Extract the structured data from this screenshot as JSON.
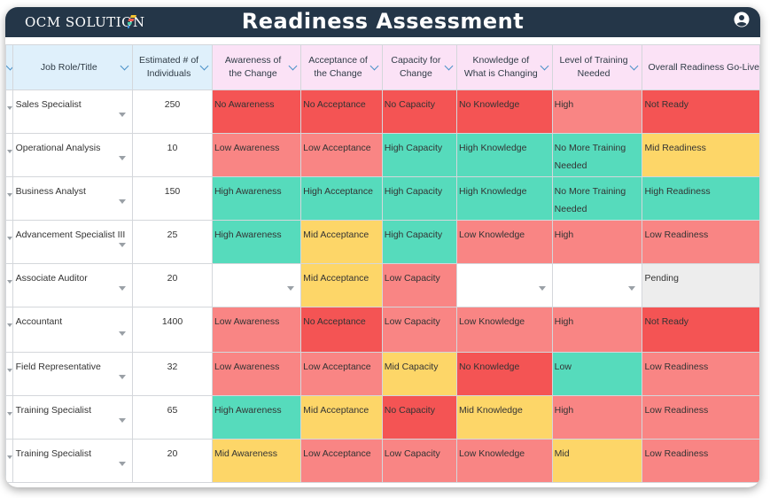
{
  "header": {
    "logo_text": "OCM SOLUTION",
    "title": "Readiness Assessment",
    "user_icon": "user-circle-icon"
  },
  "colors": {
    "topbar": "#243648",
    "red": "#f45454",
    "light_red": "#f98584",
    "green": "#56dbbc",
    "yellow": "#fdd668",
    "grey": "#ededed",
    "header_blue": "#dff0fb",
    "header_pink": "#fbe2f6"
  },
  "columns": [
    {
      "key": "role",
      "label": "Job Role/Title"
    },
    {
      "key": "count",
      "label": "Estimated # of Individuals"
    },
    {
      "key": "awareness",
      "label": "Awareness of the Change"
    },
    {
      "key": "acceptance",
      "label": "Acceptance of the Change"
    },
    {
      "key": "capacity",
      "label": "Capacity for Change"
    },
    {
      "key": "knowledge",
      "label": "Knowledge of What is Changing"
    },
    {
      "key": "training",
      "label": "Level of Training Needed"
    },
    {
      "key": "overall",
      "label": "Overall Readiness Go-Live"
    }
  ],
  "rows": [
    {
      "role": "Sales Specialist",
      "count": "250",
      "awareness": {
        "text": "No Awareness",
        "color": "red"
      },
      "acceptance": {
        "text": "No Acceptance",
        "color": "red"
      },
      "capacity": {
        "text": "No Capacity",
        "color": "red"
      },
      "knowledge": {
        "text": "No Knowledge",
        "color": "red"
      },
      "training": {
        "text": "High",
        "color": "lred"
      },
      "overall": {
        "text": "Not Ready",
        "color": "red"
      }
    },
    {
      "role": "Operational Analysis",
      "count": "10",
      "awareness": {
        "text": "Low Awareness",
        "color": "lred"
      },
      "acceptance": {
        "text": "Low Acceptance",
        "color": "lred"
      },
      "capacity": {
        "text": "High Capacity",
        "color": "green"
      },
      "knowledge": {
        "text": "High Knowledge",
        "color": "green"
      },
      "training": {
        "text": "No More Training Needed",
        "color": "green"
      },
      "overall": {
        "text": "Mid Readiness",
        "color": "yellow"
      }
    },
    {
      "role": "Business Analyst",
      "count": "150",
      "awareness": {
        "text": "High Awareness",
        "color": "green"
      },
      "acceptance": {
        "text": "High Acceptance",
        "color": "green"
      },
      "capacity": {
        "text": "High Capacity",
        "color": "green"
      },
      "knowledge": {
        "text": "High Knowledge",
        "color": "green"
      },
      "training": {
        "text": "No More Training Needed",
        "color": "green"
      },
      "overall": {
        "text": "High Readiness",
        "color": "green"
      }
    },
    {
      "role": "Advancement Specialist III",
      "count": "25",
      "awareness": {
        "text": "High Awareness",
        "color": "green"
      },
      "acceptance": {
        "text": "Mid Acceptance",
        "color": "yellow"
      },
      "capacity": {
        "text": "High Capacity",
        "color": "green"
      },
      "knowledge": {
        "text": "Low Knowledge",
        "color": "lred"
      },
      "training": {
        "text": "High",
        "color": "lred"
      },
      "overall": {
        "text": "Low Readiness",
        "color": "lred"
      }
    },
    {
      "role": "Associate Auditor",
      "count": "20",
      "awareness": {
        "text": "",
        "color": "white"
      },
      "acceptance": {
        "text": "Mid Acceptance",
        "color": "yellow"
      },
      "capacity": {
        "text": "Low Capacity",
        "color": "lred"
      },
      "knowledge": {
        "text": "",
        "color": "white"
      },
      "training": {
        "text": "",
        "color": "white"
      },
      "overall": {
        "text": "Pending",
        "color": "grey"
      }
    },
    {
      "role": "Accountant",
      "count": "1400",
      "awareness": {
        "text": "Low Awareness",
        "color": "lred"
      },
      "acceptance": {
        "text": "No Acceptance",
        "color": "red"
      },
      "capacity": {
        "text": "Low Capacity",
        "color": "lred"
      },
      "knowledge": {
        "text": "Low Knowledge",
        "color": "lred"
      },
      "training": {
        "text": "High",
        "color": "lred"
      },
      "overall": {
        "text": "Not Ready",
        "color": "red"
      }
    },
    {
      "role": "Field Representative",
      "count": "32",
      "awareness": {
        "text": "Low Awareness",
        "color": "lred"
      },
      "acceptance": {
        "text": "Low Acceptance",
        "color": "lred"
      },
      "capacity": {
        "text": "Mid Capacity",
        "color": "yellow"
      },
      "knowledge": {
        "text": "No Knowledge",
        "color": "red"
      },
      "training": {
        "text": "Low",
        "color": "green"
      },
      "overall": {
        "text": "Low Readiness",
        "color": "lred"
      }
    },
    {
      "role": "Training Specialist",
      "count": "65",
      "awareness": {
        "text": "High Awareness",
        "color": "green"
      },
      "acceptance": {
        "text": "Mid Acceptance",
        "color": "yellow"
      },
      "capacity": {
        "text": "No Capacity",
        "color": "red"
      },
      "knowledge": {
        "text": "Mid Knowledge",
        "color": "yellow"
      },
      "training": {
        "text": "High",
        "color": "lred"
      },
      "overall": {
        "text": "Low Readiness",
        "color": "lred"
      }
    },
    {
      "role": "Training Specialist",
      "count": "20",
      "awareness": {
        "text": "Mid Awareness",
        "color": "yellow"
      },
      "acceptance": {
        "text": "Low Acceptance",
        "color": "lred"
      },
      "capacity": {
        "text": "Low Capacity",
        "color": "lred"
      },
      "knowledge": {
        "text": "Low Knowledge",
        "color": "lred"
      },
      "training": {
        "text": "Mid",
        "color": "yellow"
      },
      "overall": {
        "text": "Low Readiness",
        "color": "lred"
      }
    }
  ]
}
